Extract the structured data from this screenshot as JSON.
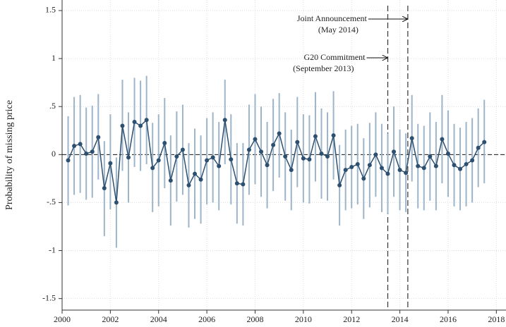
{
  "chart_data": {
    "type": "line",
    "y_label": "Probability of missing price",
    "x": [
      2000.25,
      2000.5,
      2000.75,
      2001,
      2001.25,
      2001.5,
      2001.75,
      2002,
      2002.25,
      2002.5,
      2002.75,
      2003,
      2003.25,
      2003.5,
      2003.75,
      2004,
      2004.25,
      2004.5,
      2004.75,
      2005,
      2005.25,
      2005.5,
      2005.75,
      2006,
      2006.25,
      2006.5,
      2006.75,
      2007,
      2007.25,
      2007.5,
      2007.75,
      2008,
      2008.25,
      2008.5,
      2008.75,
      2009,
      2009.25,
      2009.5,
      2009.75,
      2010,
      2010.25,
      2010.5,
      2010.75,
      2011,
      2011.25,
      2011.5,
      2011.75,
      2012,
      2012.25,
      2012.5,
      2012.75,
      2013,
      2013.25,
      2013.5,
      2013.75,
      2014,
      2014.25,
      2014.5,
      2014.75,
      2015,
      2015.25,
      2015.5,
      2015.75,
      2016,
      2016.25,
      2016.5,
      2016.75,
      2017,
      2017.25,
      2017.5
    ],
    "series": [
      {
        "color": "#2e5070",
        "error_color": "#9db4c9",
        "values": [
          -0.06,
          0.09,
          0.11,
          0.01,
          0.03,
          0.18,
          -0.35,
          -0.09,
          -0.5,
          0.3,
          -0.03,
          0.34,
          0.3,
          0.36,
          -0.14,
          -0.06,
          0.12,
          -0.27,
          -0.02,
          0.05,
          -0.32,
          -0.2,
          -0.26,
          -0.06,
          -0.03,
          -0.12,
          0.36,
          -0.05,
          -0.3,
          -0.31,
          0.05,
          0.16,
          0.03,
          -0.11,
          0.1,
          0.22,
          -0.02,
          -0.16,
          0.13,
          -0.04,
          -0.05,
          0.19,
          0.01,
          -0.02,
          0.2,
          -0.32,
          -0.16,
          -0.13,
          -0.1,
          -0.25,
          -0.11,
          0.0,
          -0.14,
          -0.2,
          0.03,
          -0.16,
          -0.19,
          0.17,
          -0.12,
          -0.14,
          -0.02,
          -0.12,
          0.16,
          0.01,
          -0.11,
          -0.15,
          -0.1,
          -0.06,
          0.07,
          0.13
        ],
        "lower": [
          -0.53,
          -0.42,
          -0.4,
          -0.47,
          -0.45,
          -0.26,
          -0.85,
          -0.57,
          -0.97,
          -0.17,
          -0.5,
          -0.13,
          -0.17,
          -0.1,
          -0.6,
          -0.54,
          -0.35,
          -0.74,
          -0.49,
          -0.42,
          -0.76,
          -0.67,
          -0.72,
          -0.52,
          -0.5,
          -0.58,
          -0.1,
          -0.52,
          -0.72,
          -0.74,
          -0.42,
          -0.31,
          -0.44,
          -0.56,
          -0.38,
          -0.24,
          -0.48,
          -0.58,
          -0.34,
          -0.5,
          -0.51,
          -0.28,
          -0.46,
          -0.48,
          -0.26,
          -0.74,
          -0.58,
          -0.56,
          -0.52,
          -0.67,
          -0.55,
          -0.44,
          -0.6,
          -0.62,
          -0.44,
          -0.58,
          -0.6,
          -0.28,
          -0.56,
          -0.58,
          -0.48,
          -0.58,
          -0.3,
          -0.44,
          -0.54,
          -0.58,
          -0.54,
          -0.5,
          -0.34,
          -0.3
        ],
        "upper": [
          0.4,
          0.6,
          0.62,
          0.49,
          0.51,
          0.63,
          0.14,
          0.42,
          -0.03,
          0.78,
          0.44,
          0.8,
          0.77,
          0.82,
          0.33,
          0.42,
          0.59,
          0.2,
          0.45,
          0.52,
          0.12,
          0.27,
          0.2,
          0.38,
          0.44,
          0.34,
          0.78,
          0.42,
          0.12,
          0.12,
          0.52,
          0.63,
          0.5,
          0.34,
          0.58,
          0.64,
          0.44,
          0.26,
          0.6,
          0.42,
          0.41,
          0.65,
          0.48,
          0.44,
          0.66,
          0.1,
          0.26,
          0.3,
          0.32,
          0.17,
          0.33,
          0.44,
          0.32,
          0.22,
          0.5,
          0.26,
          0.22,
          0.62,
          0.32,
          0.3,
          0.44,
          0.34,
          0.62,
          0.46,
          0.32,
          0.28,
          0.34,
          0.38,
          0.48,
          0.57
        ]
      }
    ],
    "xlim": [
      2000,
      2018.4
    ],
    "ylim": [
      -1.62,
      1.61
    ],
    "xticks": [
      2000,
      2002,
      2004,
      2006,
      2008,
      2010,
      2012,
      2014,
      2016,
      2018
    ],
    "yticks": [
      {
        "value": -1.5,
        "label": "-1.5"
      },
      -1,
      {
        "value": -0.5,
        "label": "-.5"
      },
      0,
      {
        "value": 0.5,
        "label": ".5"
      },
      1,
      {
        "value": 1.5,
        "label": "1.5"
      }
    ],
    "grid": true,
    "hline": 0,
    "annotations": [
      {
        "x": 2014.33,
        "lines": [
          "Joint Announcement",
          "(May 2014)"
        ]
      },
      {
        "x": 2013.5,
        "lines": [
          "G20 Commitment",
          "(September 2013)"
        ]
      }
    ]
  }
}
